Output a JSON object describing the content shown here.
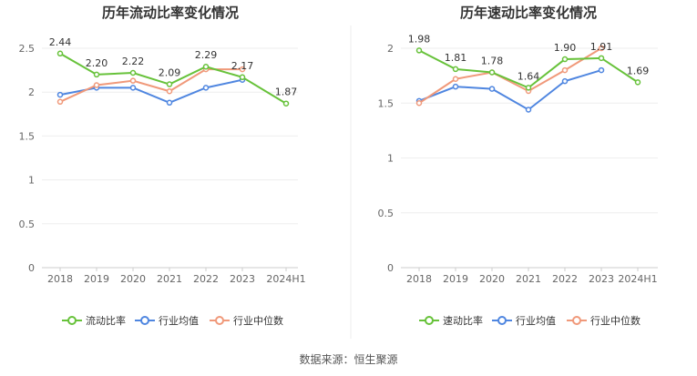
{
  "source_text": "数据来源：恒生聚源",
  "chart_data": [
    {
      "type": "line",
      "title": "历年流动比率变化情况",
      "categories": [
        "2018",
        "2019",
        "2020",
        "2021",
        "2022",
        "2023",
        "2024H1"
      ],
      "ylim": [
        0,
        2.5
      ],
      "yticks": [
        "0",
        "0.5",
        "1",
        "1.5",
        "2",
        "2.5"
      ],
      "ytick_values": [
        0,
        0.5,
        1,
        1.5,
        2,
        2.5
      ],
      "grid": true,
      "legend_position": "bottom",
      "series": [
        {
          "name": "流动比率",
          "color": "#67c23a",
          "values": [
            2.44,
            2.2,
            2.22,
            2.09,
            2.29,
            2.17,
            1.87
          ],
          "labels": [
            "2.44",
            "2.20",
            "2.22",
            "2.09",
            "2.29",
            "2.17",
            "1.87"
          ]
        },
        {
          "name": "行业均值",
          "color": "#4f86e0",
          "values": [
            1.97,
            2.05,
            2.05,
            1.88,
            2.05,
            2.14,
            null
          ]
        },
        {
          "name": "行业中位数",
          "color": "#f0997a",
          "values": [
            1.89,
            2.08,
            2.13,
            2.01,
            2.26,
            2.26,
            null
          ]
        }
      ]
    },
    {
      "type": "line",
      "title": "历年速动比率变化情况",
      "categories": [
        "2018",
        "2019",
        "2020",
        "2021",
        "2022",
        "2023",
        "2024H1"
      ],
      "ylim": [
        0,
        2
      ],
      "yticks": [
        "0",
        "0.5",
        "1",
        "1.5",
        "2"
      ],
      "ytick_values": [
        0,
        0.5,
        1,
        1.5,
        2
      ],
      "grid": true,
      "legend_position": "bottom",
      "series": [
        {
          "name": "速动比率",
          "color": "#67c23a",
          "values": [
            1.98,
            1.81,
            1.78,
            1.64,
            1.9,
            1.91,
            1.69
          ],
          "labels": [
            "1.98",
            "1.81",
            "1.78",
            "1.64",
            "1.90",
            "1.91",
            "1.69"
          ]
        },
        {
          "name": "行业均值",
          "color": "#4f86e0",
          "values": [
            1.52,
            1.65,
            1.63,
            1.44,
            1.7,
            1.8,
            null
          ]
        },
        {
          "name": "行业中位数",
          "color": "#f0997a",
          "values": [
            1.5,
            1.72,
            1.78,
            1.61,
            1.8,
            2.0,
            null
          ]
        }
      ]
    }
  ]
}
